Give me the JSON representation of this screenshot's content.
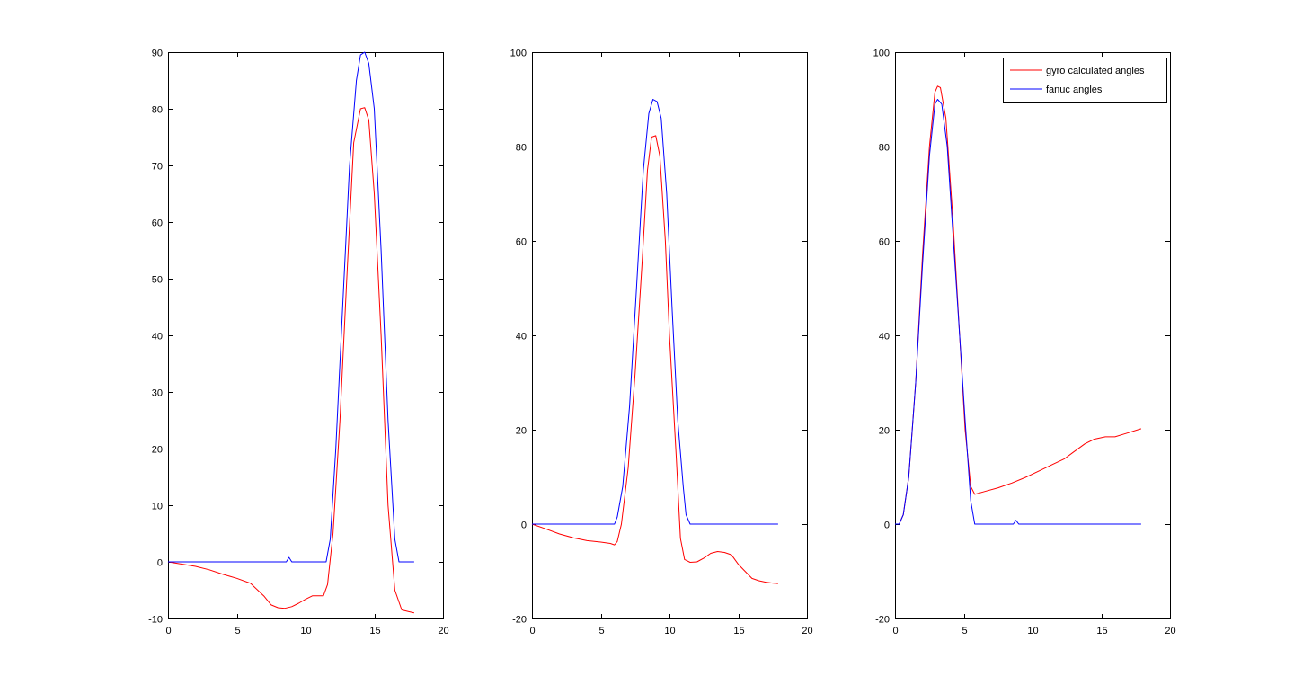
{
  "figure": {
    "background": "#ffffff",
    "axis_color": "#000000"
  },
  "chart_data": [
    {
      "type": "line",
      "title": "",
      "xlabel": "",
      "ylabel": "",
      "xlim": [
        0,
        20
      ],
      "ylim": [
        -10,
        90
      ],
      "xticks": [
        0,
        5,
        10,
        15,
        20
      ],
      "yticks": [
        -10,
        0,
        10,
        20,
        30,
        40,
        50,
        60,
        70,
        80,
        90
      ],
      "xtick_labels": [
        "0",
        "5",
        "10",
        "15",
        "20"
      ],
      "ytick_labels": [
        "-10",
        "0",
        "10",
        "20",
        "30",
        "40",
        "50",
        "60",
        "70",
        "80",
        "90"
      ],
      "grid": false,
      "legend": null,
      "series": [
        {
          "color": "#ff0000",
          "points": [
            [
              0,
              0
            ],
            [
              1,
              -0.4
            ],
            [
              2,
              -0.8
            ],
            [
              3,
              -1.4
            ],
            [
              4,
              -2.2
            ],
            [
              5,
              -2.9
            ],
            [
              6,
              -3.8
            ],
            [
              7,
              -6.1
            ],
            [
              7.5,
              -7.6
            ],
            [
              8,
              -8.1
            ],
            [
              8.5,
              -8.2
            ],
            [
              9,
              -7.9
            ],
            [
              9.5,
              -7.3
            ],
            [
              10,
              -6.6
            ],
            [
              10.5,
              -6
            ],
            [
              11,
              -6
            ],
            [
              11.3,
              -6
            ],
            [
              11.6,
              -4
            ],
            [
              12,
              5
            ],
            [
              12.5,
              25
            ],
            [
              13,
              50
            ],
            [
              13.5,
              74
            ],
            [
              14,
              80
            ],
            [
              14.3,
              80.2
            ],
            [
              14.6,
              78
            ],
            [
              15,
              65
            ],
            [
              15.5,
              40
            ],
            [
              16,
              10
            ],
            [
              16.5,
              -5
            ],
            [
              17,
              -8.5
            ],
            [
              17.5,
              -8.8
            ],
            [
              17.9,
              -9
            ]
          ]
        },
        {
          "color": "#0000ff",
          "points": [
            [
              0,
              0
            ],
            [
              8.6,
              0
            ],
            [
              8.8,
              0.8
            ],
            [
              9,
              0
            ],
            [
              11.5,
              0
            ],
            [
              11.8,
              4
            ],
            [
              12.2,
              20
            ],
            [
              12.7,
              45
            ],
            [
              13.2,
              70
            ],
            [
              13.7,
              85
            ],
            [
              14,
              89.5
            ],
            [
              14.3,
              90
            ],
            [
              14.6,
              88
            ],
            [
              15,
              80
            ],
            [
              15.5,
              55
            ],
            [
              16,
              25
            ],
            [
              16.5,
              4
            ],
            [
              16.8,
              0
            ],
            [
              17.9,
              0
            ]
          ]
        }
      ]
    },
    {
      "type": "line",
      "title": "",
      "xlabel": "",
      "ylabel": "",
      "xlim": [
        0,
        20
      ],
      "ylim": [
        -20,
        100
      ],
      "xticks": [
        0,
        5,
        10,
        15,
        20
      ],
      "yticks": [
        -20,
        0,
        20,
        40,
        60,
        80,
        100
      ],
      "xtick_labels": [
        "0",
        "5",
        "10",
        "15",
        "20"
      ],
      "ytick_labels": [
        "-20",
        "0",
        "20",
        "40",
        "60",
        "80",
        "100"
      ],
      "grid": false,
      "legend": null,
      "series": [
        {
          "color": "#ff0000",
          "points": [
            [
              0,
              0
            ],
            [
              1,
              -1
            ],
            [
              2,
              -2.1
            ],
            [
              3,
              -2.9
            ],
            [
              4,
              -3.5
            ],
            [
              5,
              -3.8
            ],
            [
              5.7,
              -4.1
            ],
            [
              6,
              -4.4
            ],
            [
              6.2,
              -3.7
            ],
            [
              6.5,
              0
            ],
            [
              7,
              12
            ],
            [
              7.5,
              32
            ],
            [
              8,
              55
            ],
            [
              8.4,
              75
            ],
            [
              8.7,
              82
            ],
            [
              9,
              82.3
            ],
            [
              9.3,
              78
            ],
            [
              9.7,
              60
            ],
            [
              10,
              40
            ],
            [
              10.5,
              14
            ],
            [
              10.8,
              -3
            ],
            [
              11.1,
              -7.5
            ],
            [
              11.5,
              -8.1
            ],
            [
              12,
              -8
            ],
            [
              12.5,
              -7.2
            ],
            [
              13,
              -6.2
            ],
            [
              13.5,
              -5.8
            ],
            [
              14,
              -6
            ],
            [
              14.5,
              -6.5
            ],
            [
              15,
              -8.5
            ],
            [
              15.5,
              -10
            ],
            [
              16,
              -11.5
            ],
            [
              16.5,
              -12
            ],
            [
              17,
              -12.3
            ],
            [
              17.5,
              -12.5
            ],
            [
              17.9,
              -12.6
            ]
          ]
        },
        {
          "color": "#0000ff",
          "points": [
            [
              0,
              0
            ],
            [
              6,
              0
            ],
            [
              6.2,
              1.5
            ],
            [
              6.6,
              8
            ],
            [
              7.1,
              25
            ],
            [
              7.6,
              50
            ],
            [
              8.1,
              75
            ],
            [
              8.5,
              87
            ],
            [
              8.8,
              90
            ],
            [
              9.1,
              89.5
            ],
            [
              9.4,
              86
            ],
            [
              9.8,
              70
            ],
            [
              10.2,
              45
            ],
            [
              10.6,
              22
            ],
            [
              11,
              8
            ],
            [
              11.2,
              2
            ],
            [
              11.5,
              0
            ],
            [
              17.9,
              0
            ]
          ]
        }
      ]
    },
    {
      "type": "line",
      "title": "",
      "xlabel": "",
      "ylabel": "",
      "xlim": [
        0,
        20
      ],
      "ylim": [
        -20,
        100
      ],
      "xticks": [
        0,
        5,
        10,
        15,
        20
      ],
      "yticks": [
        -20,
        0,
        20,
        40,
        60,
        80,
        100
      ],
      "xtick_labels": [
        "0",
        "5",
        "10",
        "15",
        "20"
      ],
      "ytick_labels": [
        "-20",
        "0",
        "20",
        "40",
        "60",
        "80",
        "100"
      ],
      "grid": false,
      "legend": {
        "placement": "top-right",
        "entries": [
          {
            "label": "gyro calculated angles",
            "color": "#ff0000"
          },
          {
            "label": "fanuc angles",
            "color": "#0000ff"
          }
        ]
      },
      "series": [
        {
          "name": "gyro calculated angles",
          "color": "#ff0000",
          "points": [
            [
              0,
              0
            ],
            [
              0.3,
              0
            ],
            [
              0.6,
              2
            ],
            [
              1,
              10
            ],
            [
              1.5,
              30
            ],
            [
              2,
              57
            ],
            [
              2.5,
              80
            ],
            [
              2.9,
              91.5
            ],
            [
              3.1,
              92.8
            ],
            [
              3.3,
              92.5
            ],
            [
              3.7,
              86
            ],
            [
              4.2,
              65
            ],
            [
              4.7,
              40
            ],
            [
              5.1,
              20
            ],
            [
              5.5,
              8
            ],
            [
              5.8,
              6.3
            ],
            [
              6.5,
              6.9
            ],
            [
              7.5,
              7.7
            ],
            [
              8.5,
              8.7
            ],
            [
              9.5,
              9.9
            ],
            [
              10.5,
              11.3
            ],
            [
              11.5,
              12.7
            ],
            [
              12.3,
              13.8
            ],
            [
              13,
              15.3
            ],
            [
              13.8,
              17
            ],
            [
              14.5,
              18
            ],
            [
              15.3,
              18.5
            ],
            [
              16,
              18.5
            ],
            [
              16.8,
              19.2
            ],
            [
              17.9,
              20.2
            ]
          ]
        },
        {
          "name": "fanuc angles",
          "color": "#0000ff",
          "points": [
            [
              0,
              0
            ],
            [
              0.3,
              0
            ],
            [
              0.6,
              2
            ],
            [
              1,
              10
            ],
            [
              1.5,
              30
            ],
            [
              2,
              55
            ],
            [
              2.5,
              78
            ],
            [
              2.9,
              89
            ],
            [
              3.1,
              90
            ],
            [
              3.4,
              89
            ],
            [
              3.8,
              80
            ],
            [
              4.2,
              62
            ],
            [
              4.7,
              40
            ],
            [
              5.1,
              22
            ],
            [
              5.5,
              5
            ],
            [
              5.8,
              0
            ],
            [
              8.6,
              0
            ],
            [
              8.8,
              0.8
            ],
            [
              9,
              0
            ],
            [
              17.9,
              0
            ]
          ]
        }
      ]
    }
  ]
}
